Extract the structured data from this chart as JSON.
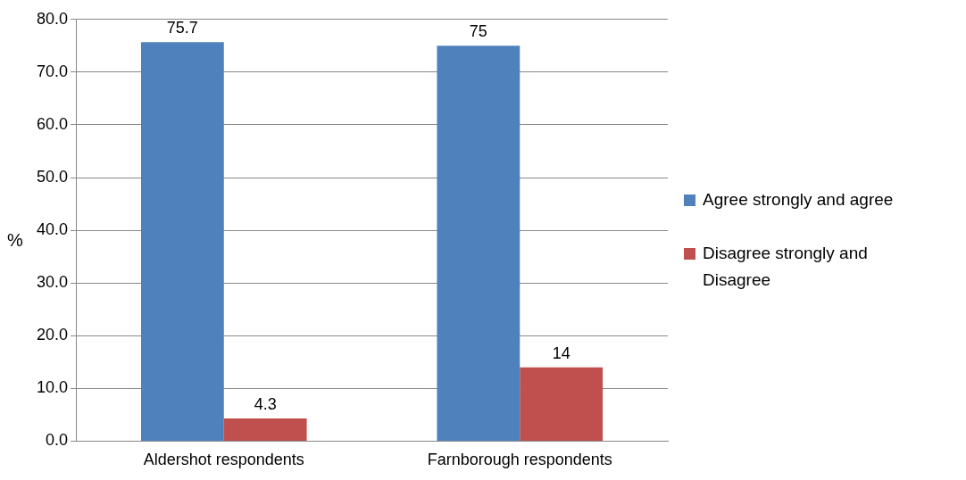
{
  "chart_data": {
    "type": "bar",
    "ylabel": "%",
    "categories": [
      "Aldershot respondents",
      "Farnborough respondents"
    ],
    "series": [
      {
        "name": "Agree strongly and agree",
        "color": "#4f81bd",
        "values": [
          75.7,
          75
        ]
      },
      {
        "name": "Disagree strongly and Disagree",
        "color": "#c0504d",
        "values": [
          4.3,
          14
        ]
      }
    ],
    "ylim": [
      0,
      80
    ],
    "yticks": [
      {
        "value": 0,
        "label": "0.0"
      },
      {
        "value": 10,
        "label": "10.0"
      },
      {
        "value": 20,
        "label": "20.0"
      },
      {
        "value": 30,
        "label": "30.0"
      },
      {
        "value": 40,
        "label": "40.0"
      },
      {
        "value": 50,
        "label": "50.0"
      },
      {
        "value": 60,
        "label": "60.0"
      },
      {
        "value": 70,
        "label": "70.0"
      },
      {
        "value": 80,
        "label": "80.0"
      }
    ],
    "grid": "y",
    "legend": "right",
    "data_labels": true
  }
}
